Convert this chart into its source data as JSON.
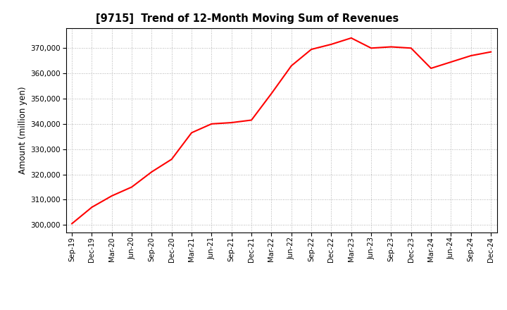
{
  "title": "[9715]  Trend of 12-Month Moving Sum of Revenues",
  "ylabel": "Amount (million yen)",
  "line_color": "#ff0000",
  "line_width": 1.5,
  "background_color": "#ffffff",
  "plot_bg_color": "#ffffff",
  "grid_color": "#999999",
  "ylim": [
    297000,
    378000
  ],
  "yticks": [
    300000,
    310000,
    320000,
    330000,
    340000,
    350000,
    360000,
    370000
  ],
  "x_labels": [
    "Sep-19",
    "Dec-19",
    "Mar-20",
    "Jun-20",
    "Sep-20",
    "Dec-20",
    "Mar-21",
    "Jun-21",
    "Sep-21",
    "Dec-21",
    "Mar-22",
    "Jun-22",
    "Sep-22",
    "Dec-22",
    "Mar-23",
    "Jun-23",
    "Sep-23",
    "Dec-23",
    "Mar-24",
    "Jun-24",
    "Sep-24",
    "Dec-24"
  ],
  "values": [
    300500,
    307000,
    311500,
    315000,
    321000,
    326000,
    336500,
    340000,
    340500,
    341500,
    352000,
    363000,
    369500,
    371500,
    374000,
    370000,
    370500,
    370000,
    362000,
    364500,
    367000,
    368500
  ]
}
